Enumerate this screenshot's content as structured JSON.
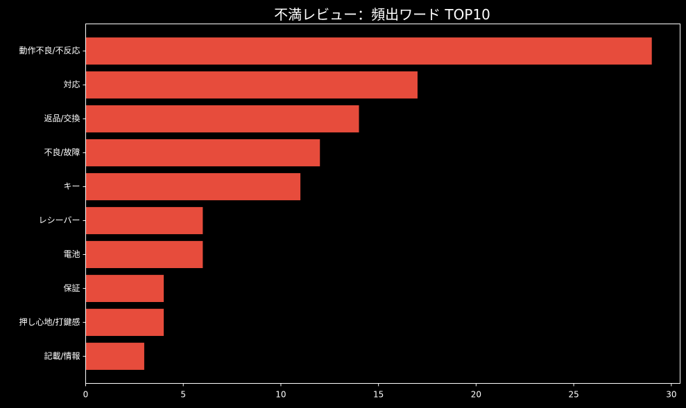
{
  "chart_data": {
    "type": "bar",
    "orientation": "horizontal",
    "title": "不満レビュー：頻出ワード TOP10",
    "xlabel": "",
    "ylabel": "",
    "categories": [
      "動作不良/不反応",
      "対応",
      "返品/交換",
      "不良/故障",
      "キー",
      "レシーバー",
      "電池",
      "保証",
      "押し心地/打鍵感",
      "記載/情報"
    ],
    "values": [
      29,
      17,
      14,
      12,
      11,
      6,
      6,
      4,
      4,
      3
    ],
    "xlim": [
      0,
      30.45
    ],
    "xticks": [
      0,
      5,
      10,
      15,
      20,
      25,
      30
    ],
    "grid": false,
    "legend": "none"
  },
  "colors": {
    "background": "#000000",
    "bar": "#e74c3c",
    "text": "#ffffff",
    "axis": "#ffffff"
  }
}
